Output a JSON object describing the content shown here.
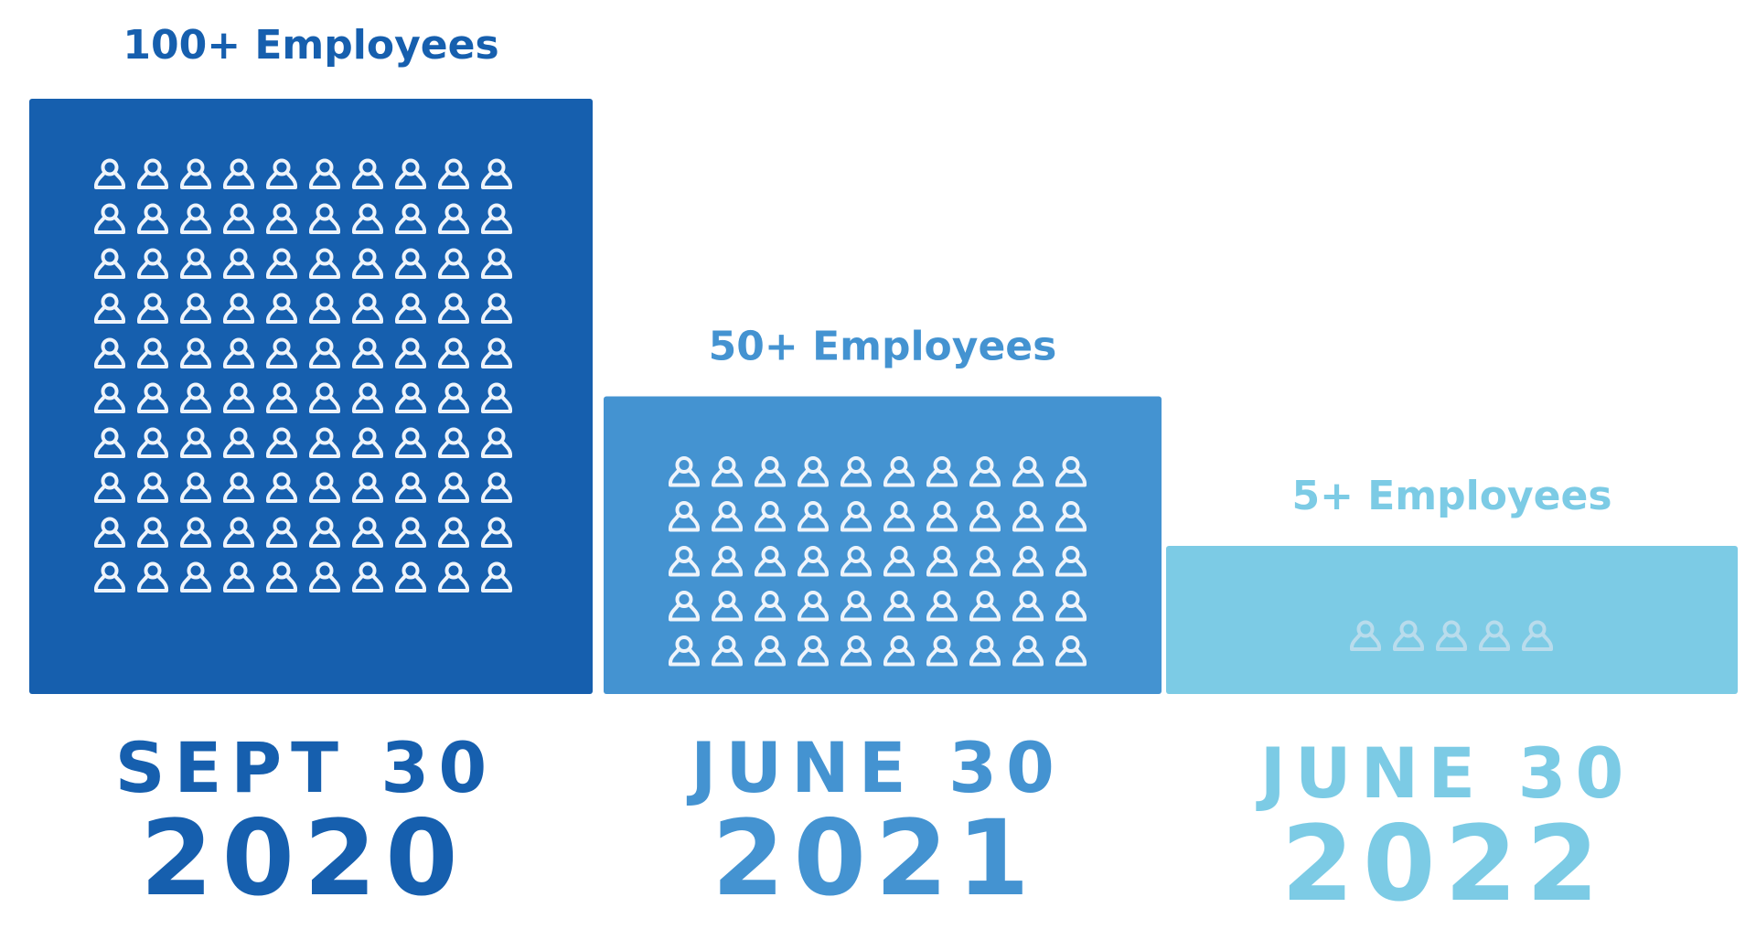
{
  "chart_data": {
    "type": "bar",
    "title": "",
    "xlabel": "",
    "ylabel": "",
    "ylim": [
      0,
      100
    ],
    "grid": false,
    "legend": "none",
    "categories": [
      {
        "date": "SEPT 30",
        "year": "2020"
      },
      {
        "date": "JUNE 30",
        "year": "2021"
      },
      {
        "date": "JUNE 30",
        "year": "2022"
      }
    ],
    "values": [
      100,
      50,
      5
    ],
    "data_labels": [
      "100+ Employees",
      "50+ Employees",
      "5+ Employees"
    ],
    "icon": "person-icon",
    "colors": [
      "#165fae",
      "#4493d1",
      "#7ccbe5"
    ]
  }
}
